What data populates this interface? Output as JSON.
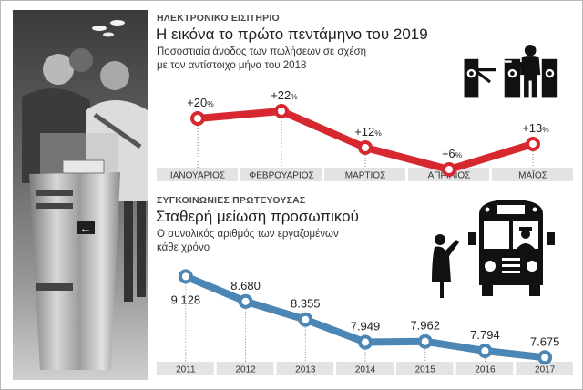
{
  "chart_data": [
    {
      "type": "line",
      "kicker": "ΗΛΕΚΤΡΟΝΙΚΟ ΕΙΣΙΤΗΡΙΟ",
      "title": "Η εικόνα το πρώτο πεντάμηνο του 2019",
      "subtitle_lines": [
        "Ποσοστιαία άνοδος των πωλήσεων σε σχέση",
        "με τον αντίστοιχο μήνα του 2018"
      ],
      "categories": [
        "ΙΑΝΟΥΑΡΙΟΣ",
        "ΦΕΒΡΟΥΑΡΙΟΣ",
        "ΜΑΡΤΙΟΣ",
        "ΑΠΡΙΛΙΟΣ",
        "ΜΑΪΟΣ"
      ],
      "values": [
        20,
        22,
        12,
        6,
        13
      ],
      "value_labels": [
        "+20",
        "+22",
        "+12",
        "+6",
        "+13"
      ],
      "unit_suffix": "%",
      "ylim": [
        0,
        25
      ],
      "color": "#d7282f",
      "xlabel": "",
      "ylabel": "",
      "grid": false
    },
    {
      "type": "line",
      "kicker": "ΣΥΓΚΟΙΝΩΝΙΕΣ ΠΡΩΤΕΥΟΥΣΑΣ",
      "title": "Σταθερή μείωση προσωπικού",
      "subtitle_lines": [
        "Ο συνολικός αριθμός των εργαζομένων",
        "κάθε χρόνο"
      ],
      "categories": [
        "2011",
        "2012",
        "2013",
        "2014",
        "2015",
        "2016",
        "2017"
      ],
      "values": [
        9128,
        8680,
        8355,
        7949,
        7962,
        7794,
        7675
      ],
      "value_labels": [
        "9.128",
        "8.680",
        "8.355",
        "7.949",
        "7.962",
        "7.794",
        "7.675"
      ],
      "ylim": [
        7500,
        9200
      ],
      "color": "#4b86b4",
      "xlabel": "",
      "ylabel": "",
      "grid": false
    }
  ],
  "photo": {
    "arrow_glyph": "←"
  },
  "icons": [
    "turnstile-icon",
    "bus-icon"
  ]
}
